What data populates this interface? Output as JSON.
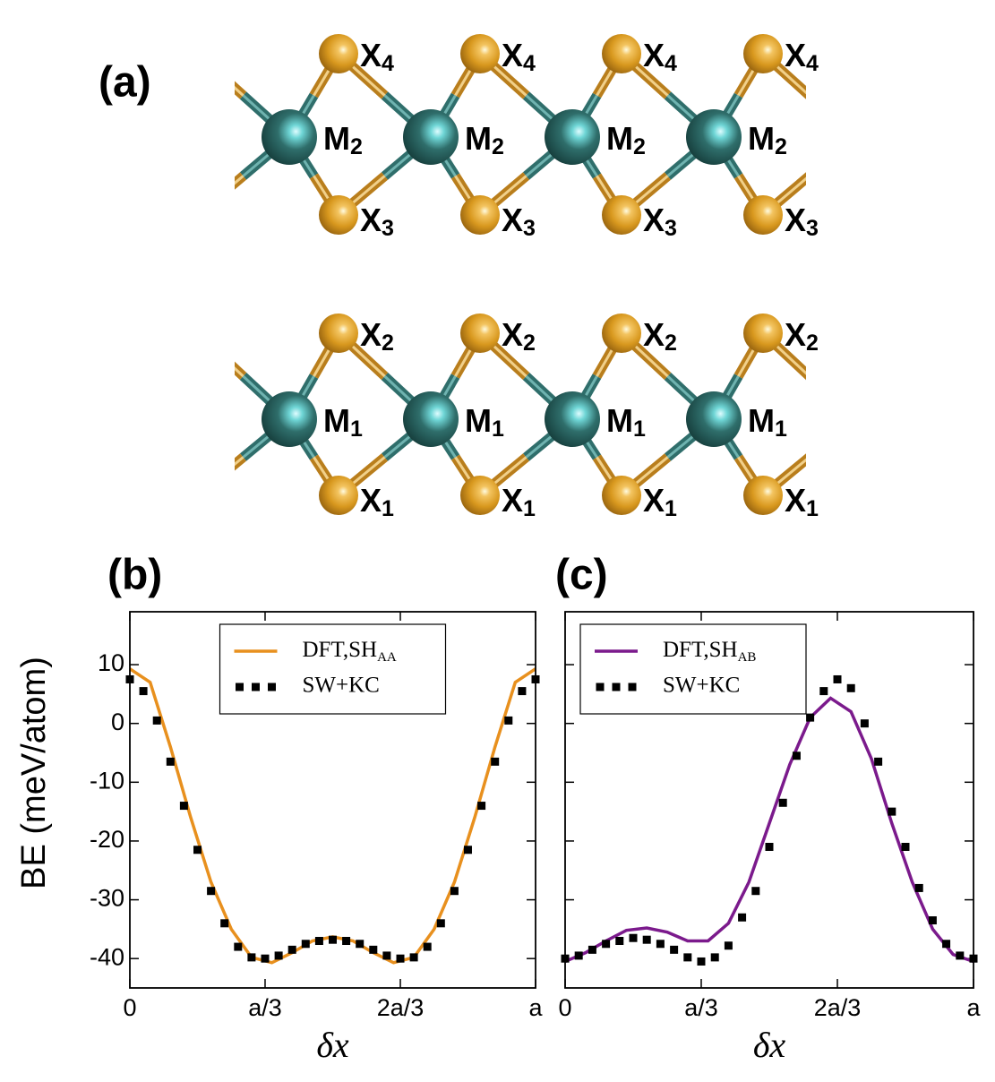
{
  "panel_labels": [
    "(a)",
    "(b)",
    "(c)"
  ],
  "diagram": {
    "rows": [
      {
        "base": "X",
        "sub": "4"
      },
      {
        "base": "M",
        "sub": "2"
      },
      {
        "base": "X",
        "sub": "3"
      },
      {
        "base": "X",
        "sub": "2"
      },
      {
        "base": "M",
        "sub": "1"
      },
      {
        "base": "X",
        "sub": "1"
      }
    ]
  },
  "chart_data": [
    {
      "type": "line",
      "ylabel": "BE (meV/atom)",
      "xlabel": "δx",
      "xlim": [
        0,
        1
      ],
      "xticks": [
        0,
        {
          "value": 0.3333,
          "label": "a/3"
        },
        {
          "value": 0.6667,
          "label": "2a/3"
        },
        {
          "value": 1,
          "label": "a"
        }
      ],
      "ylim": [
        -45,
        19
      ],
      "yticks": [
        -40,
        -30,
        -20,
        -10,
        0,
        10
      ],
      "show_ytick_labels": true,
      "legend": "upper center",
      "series": [
        {
          "name": "DFT,SH",
          "name_sub": "AA",
          "color": "#e8901e",
          "style": "line",
          "x": [
            0,
            0.05,
            0.1,
            0.15,
            0.2,
            0.25,
            0.3,
            0.35,
            0.4,
            0.45,
            0.5,
            0.55,
            0.6,
            0.65,
            0.7,
            0.75,
            0.8,
            0.85,
            0.9,
            0.95,
            1
          ],
          "values": [
            9.3,
            7,
            -4,
            -16,
            -27,
            -35,
            -39.8,
            -40.7,
            -39,
            -37,
            -36.3,
            -37,
            -39,
            -40.7,
            -39.8,
            -35,
            -27,
            -16,
            -4,
            7,
            9.3
          ]
        },
        {
          "name": "SW+KC",
          "color": "#000000",
          "style": "square",
          "x": [
            0,
            0.0333,
            0.0667,
            0.1,
            0.1333,
            0.1667,
            0.2,
            0.2333,
            0.2667,
            0.3,
            0.3333,
            0.3667,
            0.4,
            0.4333,
            0.4667,
            0.5,
            0.5333,
            0.5667,
            0.6,
            0.6333,
            0.6667,
            0.7,
            0.7333,
            0.7667,
            0.8,
            0.8333,
            0.8667,
            0.9,
            0.9333,
            0.9667,
            1
          ],
          "values": [
            7.5,
            5.5,
            0.5,
            -6.5,
            -14,
            -21.5,
            -28.5,
            -34,
            -38,
            -39.8,
            -40,
            -39.5,
            -38.5,
            -37.5,
            -37,
            -36.8,
            -37,
            -37.5,
            -38.5,
            -39.5,
            -40,
            -39.8,
            -38,
            -34,
            -28.5,
            -21.5,
            -14,
            -6.5,
            0.5,
            5.5,
            7.5
          ]
        }
      ]
    },
    {
      "type": "line",
      "xlabel": "δx",
      "xlim": [
        0,
        1
      ],
      "xticks": [
        0,
        {
          "value": 0.3333,
          "label": "a/3"
        },
        {
          "value": 0.6667,
          "label": "2a/3"
        },
        {
          "value": 1,
          "label": "a"
        }
      ],
      "ylim": [
        -45,
        19
      ],
      "yticks": [
        -40,
        -30,
        -20,
        -10,
        0,
        10
      ],
      "show_ytick_labels": false,
      "legend": "upper left",
      "series": [
        {
          "name": "DFT,SH",
          "name_sub": "AB",
          "color": "#7b1a8c",
          "style": "line",
          "x": [
            0,
            0.05,
            0.1,
            0.15,
            0.2,
            0.25,
            0.3,
            0.35,
            0.4,
            0.45,
            0.5,
            0.55,
            0.6,
            0.65,
            0.7,
            0.75,
            0.8,
            0.85,
            0.9,
            0.95,
            1
          ],
          "values": [
            -40.5,
            -39,
            -37,
            -35.2,
            -34.8,
            -35.5,
            -37,
            -37,
            -34,
            -27,
            -17,
            -7,
            1,
            4.3,
            2,
            -6,
            -17,
            -27,
            -35,
            -39.3,
            -40.5
          ]
        },
        {
          "name": "SW+KC",
          "color": "#000000",
          "style": "square",
          "x": [
            0,
            0.0333,
            0.0667,
            0.1,
            0.1333,
            0.1667,
            0.2,
            0.2333,
            0.2667,
            0.3,
            0.3333,
            0.3667,
            0.4,
            0.4333,
            0.4667,
            0.5,
            0.5333,
            0.5667,
            0.6,
            0.6333,
            0.6667,
            0.7,
            0.7333,
            0.7667,
            0.8,
            0.8333,
            0.8667,
            0.9,
            0.9333,
            0.9667,
            1
          ],
          "values": [
            -40,
            -39.5,
            -38.5,
            -37.5,
            -37,
            -36.5,
            -36.8,
            -37.5,
            -38.5,
            -39.8,
            -40.5,
            -39.8,
            -37.8,
            -33,
            -28.5,
            -21,
            -13.5,
            -5.5,
            1,
            5.5,
            7.5,
            6,
            0,
            -6.5,
            -15,
            -21,
            -28,
            -33.5,
            -37.5,
            -39.5,
            -40
          ]
        }
      ]
    }
  ]
}
